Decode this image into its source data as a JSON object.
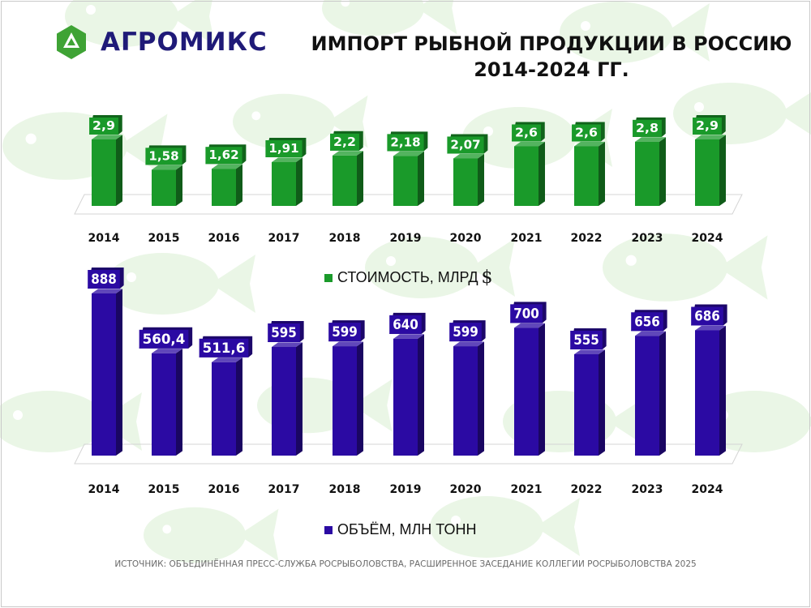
{
  "brand": {
    "name": "АГРОМИКС",
    "logo_color": "#3fa335"
  },
  "title": {
    "line1": "ИМПОРТ РЫБНОЙ ПРОДУКЦИИ В РОССИЮ",
    "line2": "2014-2024 ГГ."
  },
  "chart_data": [
    {
      "type": "bar",
      "categories": [
        "2014",
        "2015",
        "2016",
        "2017",
        "2018",
        "2019",
        "2020",
        "2021",
        "2022",
        "2023",
        "2024"
      ],
      "series": [
        {
          "name": "СТОИМОСТЬ, МЛРД $",
          "values": [
            2.9,
            1.58,
            1.62,
            1.91,
            2.2,
            2.18,
            2.07,
            2.6,
            2.6,
            2.8,
            2.9
          ],
          "labels": [
            "2,9",
            "1,58",
            "1,62",
            "1,91",
            "2,2",
            "2,18",
            "2,07",
            "2,6",
            "2,6",
            "2,8",
            "2,9"
          ],
          "color": "#1a9a2a"
        }
      ],
      "ylim": [
        0,
        3.5
      ],
      "legend": {
        "label": "СТОИМОСТЬ, МЛРД",
        "unit": "$",
        "placement": "bottom"
      },
      "grid": false
    },
    {
      "type": "bar",
      "categories": [
        "2014",
        "2015",
        "2016",
        "2017",
        "2018",
        "2019",
        "2020",
        "2021",
        "2022",
        "2023",
        "2024"
      ],
      "series": [
        {
          "name": "ОБЪЁМ, МЛН ТОНН",
          "values": [
            888,
            560.4,
            511.6,
            595,
            599,
            640,
            599,
            700,
            555,
            656,
            686
          ],
          "labels": [
            "888",
            "560,4",
            "511,6",
            "595",
            "599",
            "640",
            "599",
            "700",
            "555",
            "656",
            "686"
          ],
          "color": "#2b0aa3"
        }
      ],
      "ylim": [
        0,
        950
      ],
      "legend": {
        "label": "ОБЪЁМ, МЛН ТОНН",
        "placement": "bottom"
      },
      "grid": false
    }
  ],
  "source": "ИСТОЧНИК: ОБЪЕДИНЁННАЯ ПРЕСС-СЛУЖБА РОСРЫБОЛОВСТВА, РАСШИРЕННОЕ ЗАСЕДАНИЕ КОЛЛЕГИИ РОСРЫБОЛОВСТВА 2025"
}
